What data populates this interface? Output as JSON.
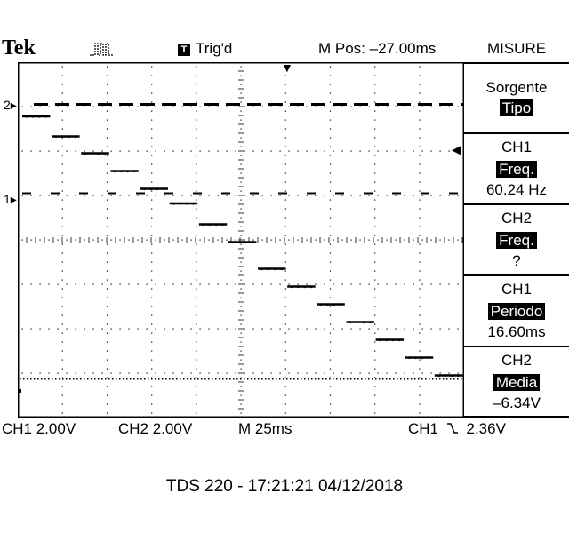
{
  "header": {
    "brand": "Tek",
    "acq_icon": "square-pulse-icon",
    "trigger_state": "Trig'd",
    "trigger_icon_glyph": "T",
    "mpos": "M Pos: –27.00ms",
    "menu": "MISURE"
  },
  "sidebar": [
    {
      "line1": "Sorgente",
      "line2": "Tipo",
      "line3": ""
    },
    {
      "line1": "CH1",
      "line2": "Freq.",
      "line3": "60.24 Hz"
    },
    {
      "line1": "CH2",
      "line2": "Freq.",
      "line3": "?"
    },
    {
      "line1": "CH1",
      "line2": "Periodo",
      "line3": "16.60ms"
    },
    {
      "line1": "CH2",
      "line2": "Media",
      "line3": "–6.34V"
    }
  ],
  "markers": {
    "ch2": "2",
    "ch1": "1"
  },
  "footer": {
    "ch1_scale": "CH1  2.00V",
    "ch2_scale": "CH2  2.00V",
    "timebase": "M 25ms",
    "trigger": "CH1",
    "trigger_level": "2.36V"
  },
  "caption": "TDS 220 - 17:21:21   04/12/2018",
  "waveform": {
    "ch1_level_div": 5.05,
    "ch2_level_div": 7.05,
    "ch2_steps_div": [
      6.78,
      6.33,
      5.95,
      5.55,
      5.15,
      4.82,
      4.35,
      3.95,
      3.35,
      2.95,
      2.55,
      2.15,
      1.75,
      1.35,
      0.95
    ]
  }
}
